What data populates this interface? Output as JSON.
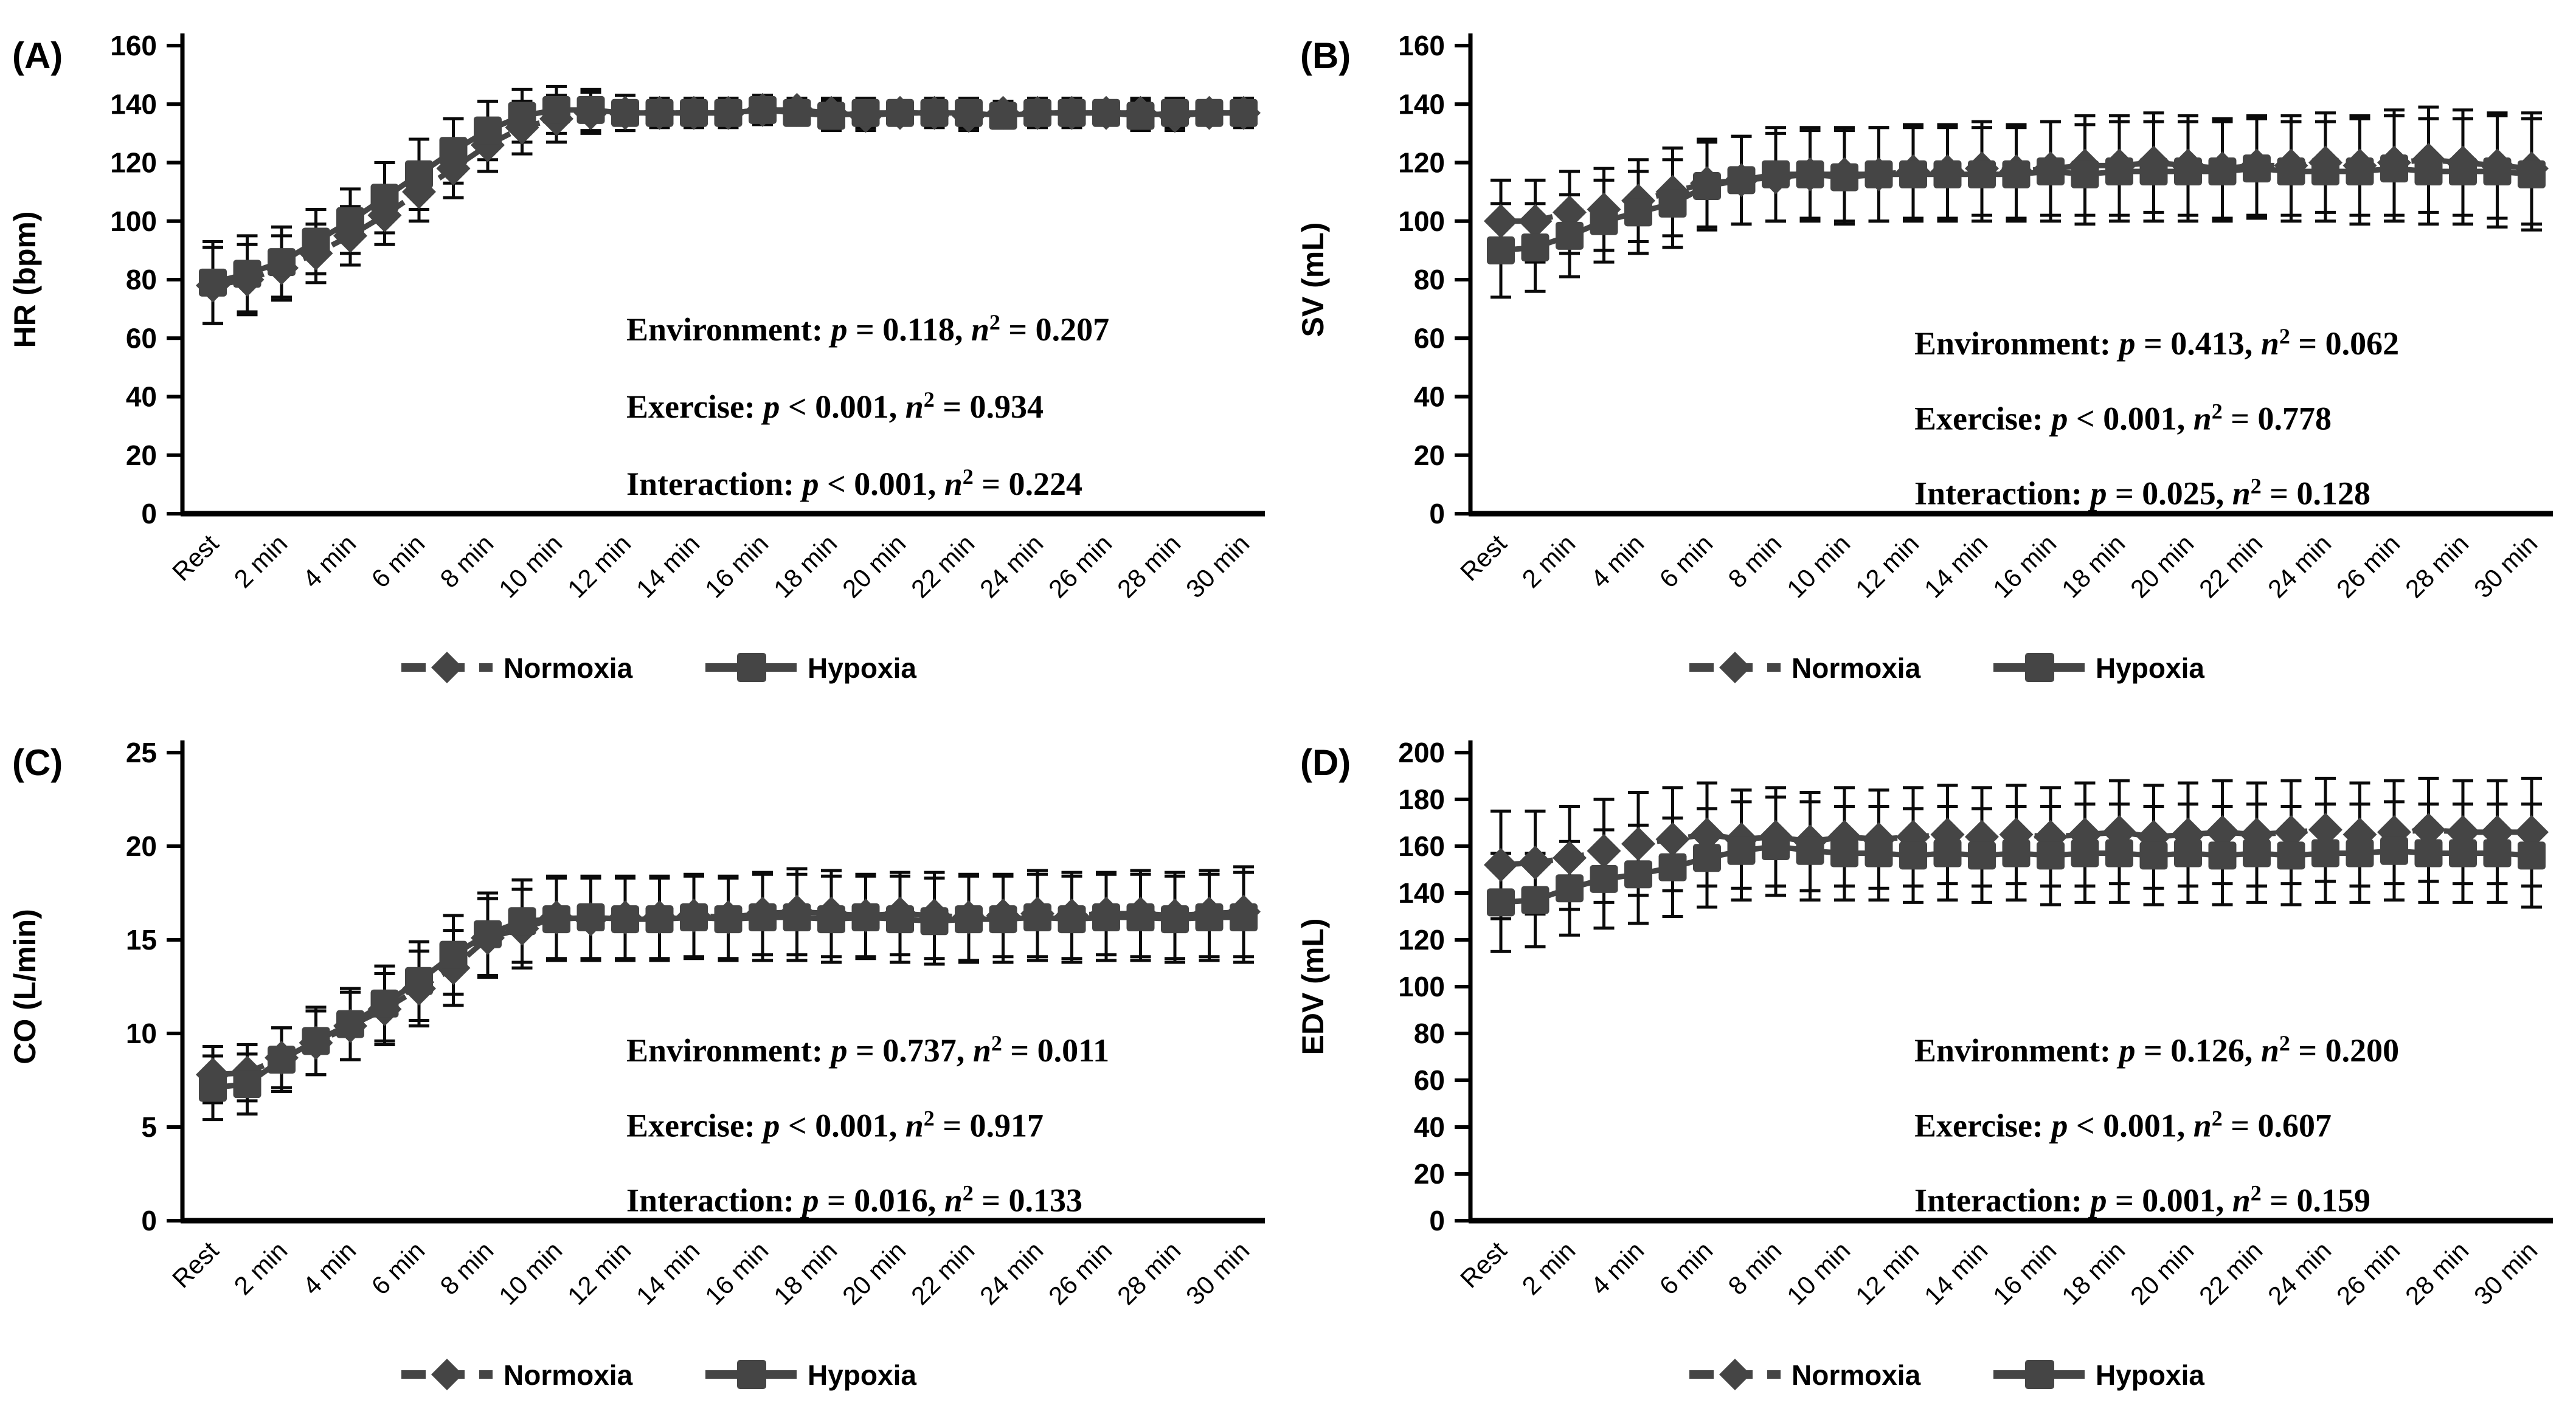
{
  "colors": {
    "background": "#ffffff",
    "series_gray": "#454545",
    "error_bar": "#0a0a0a",
    "axis": "#000000",
    "text": "#000000"
  },
  "legend": {
    "items": [
      {
        "label": "Normoxia",
        "marker": "diamond"
      },
      {
        "label": "Hypoxia",
        "marker": "square"
      }
    ]
  },
  "x_axis": {
    "tick_labels": [
      "Rest",
      "2 min",
      "4 min",
      "6 min",
      "8 min",
      "10 min",
      "12 min",
      "14 min",
      "16 min",
      "18 min",
      "20 min",
      "22 min",
      "24 min",
      "26 min",
      "28 min",
      "30 min"
    ]
  },
  "chart_data": [
    {
      "id": "A",
      "type": "line",
      "panel_label": "(A)",
      "ylabel": "HR (bpm)",
      "ylim": [
        0,
        160
      ],
      "ytick_step": 20,
      "ytick_labels": [
        "0",
        "20",
        "40",
        "60",
        "80",
        "100",
        "120",
        "140",
        "160"
      ],
      "x_minutes": [
        0,
        1,
        2,
        3,
        4,
        5,
        6,
        7,
        8,
        9,
        10,
        11,
        12,
        13,
        14,
        15,
        16,
        17,
        18,
        19,
        20,
        21,
        22,
        23,
        24,
        25,
        26,
        27,
        28,
        29,
        30
      ],
      "series": [
        {
          "name": "Normoxia",
          "marker": "diamond",
          "values": [
            78,
            80,
            84,
            89,
            95,
            102,
            110,
            118,
            126,
            132,
            135,
            137,
            137,
            137,
            137,
            137,
            138,
            138,
            137,
            136,
            137,
            137,
            136,
            137,
            137,
            137,
            137,
            137,
            136,
            137,
            137
          ],
          "err": [
            13,
            12,
            11,
            10,
            10,
            10,
            10,
            10,
            9,
            9,
            8,
            7,
            6,
            5,
            5,
            5,
            5,
            4,
            5,
            5,
            4,
            5,
            5,
            4,
            5,
            5,
            4,
            5,
            5,
            4,
            5
          ]
        },
        {
          "name": "Hypoxia",
          "marker": "square",
          "values": [
            79,
            82,
            86,
            93,
            100,
            108,
            116,
            124,
            131,
            136,
            138,
            138,
            137,
            137,
            137,
            137,
            138,
            137,
            136,
            137,
            137,
            137,
            137,
            136,
            137,
            137,
            137,
            136,
            137,
            137,
            137
          ],
          "err": [
            14,
            13,
            12,
            11,
            11,
            12,
            12,
            11,
            10,
            9,
            8,
            7,
            6,
            5,
            5,
            5,
            5,
            4,
            5,
            5,
            4,
            5,
            5,
            4,
            5,
            5,
            4,
            5,
            5,
            4,
            5
          ]
        }
      ],
      "stats": [
        [
          "Environment: ",
          "p",
          " = 0.118, ",
          "n",
          "2",
          " = 0.207"
        ],
        [
          "Exercise: ",
          "p",
          " < 0.001, ",
          "n",
          "2",
          " = 0.934"
        ],
        [
          "Interaction: ",
          "p",
          " < 0.001, ",
          "n",
          "2",
          " = 0.224"
        ]
      ]
    },
    {
      "id": "B",
      "type": "line",
      "panel_label": "(B)",
      "ylabel": "SV (mL)",
      "ylim": [
        0,
        160
      ],
      "ytick_step": 20,
      "ytick_labels": [
        "0",
        "20",
        "40",
        "60",
        "80",
        "100",
        "120",
        "140",
        "160"
      ],
      "x_minutes": [
        0,
        1,
        2,
        3,
        4,
        5,
        6,
        7,
        8,
        9,
        10,
        11,
        12,
        13,
        14,
        15,
        16,
        17,
        18,
        19,
        20,
        21,
        22,
        23,
        24,
        25,
        26,
        27,
        28,
        29,
        30
      ],
      "series": [
        {
          "name": "Normoxia",
          "marker": "diamond",
          "values": [
            100,
            100,
            103,
            104,
            107,
            110,
            113,
            114,
            115,
            116,
            116,
            116,
            117,
            117,
            118,
            117,
            118,
            119,
            119,
            120,
            119,
            118,
            119,
            119,
            120,
            119,
            120,
            121,
            120,
            119,
            118
          ],
          "err": [
            14,
            14,
            14,
            14,
            14,
            15,
            15,
            15,
            15,
            15,
            16,
            16,
            16,
            16,
            16,
            16,
            16,
            17,
            17,
            17,
            17,
            17,
            17,
            17,
            17,
            17,
            18,
            18,
            18,
            18,
            19
          ]
        },
        {
          "name": "Hypoxia",
          "marker": "square",
          "values": [
            90,
            91,
            95,
            100,
            103,
            106,
            112,
            114,
            116,
            116,
            115,
            116,
            116,
            116,
            116,
            116,
            117,
            116,
            117,
            117,
            117,
            117,
            118,
            117,
            117,
            117,
            118,
            117,
            117,
            117,
            116
          ],
          "err": [
            16,
            15,
            14,
            14,
            14,
            15,
            15,
            15,
            16,
            16,
            16,
            16,
            16,
            16,
            16,
            16,
            17,
            17,
            17,
            17,
            17,
            17,
            17,
            17,
            17,
            18,
            18,
            18,
            18,
            19,
            19
          ]
        }
      ],
      "stats": [
        [
          "Environment: ",
          "p",
          " = 0.413, ",
          "n",
          "2",
          " = 0.062"
        ],
        [
          "Exercise: ",
          "p",
          " < 0.001, ",
          "n",
          "2",
          " = 0.778"
        ],
        [
          "Interaction: ",
          "p",
          " = 0.025, ",
          "n",
          "2",
          " = 0.128"
        ]
      ]
    },
    {
      "id": "C",
      "type": "line",
      "panel_label": "(C)",
      "ylabel": "CO (L/min)",
      "ylim": [
        0,
        25
      ],
      "ytick_step": 5,
      "ytick_labels": [
        "0",
        "5",
        "10",
        "15",
        "20",
        "25"
      ],
      "x_minutes": [
        0,
        1,
        2,
        3,
        4,
        5,
        6,
        7,
        8,
        9,
        10,
        11,
        12,
        13,
        14,
        15,
        16,
        17,
        18,
        19,
        20,
        21,
        22,
        23,
        24,
        25,
        26,
        27,
        28,
        29,
        30
      ],
      "series": [
        {
          "name": "Normoxia",
          "marker": "diamond",
          "values": [
            7.8,
            7.9,
            8.7,
            9.5,
            10.4,
            11.3,
            12.4,
            13.5,
            15.1,
            15.6,
            16.2,
            16.1,
            16.2,
            16.2,
            16.3,
            16.2,
            16.4,
            16.5,
            16.4,
            16.3,
            16.4,
            16.3,
            16.2,
            16.3,
            16.4,
            16.3,
            16.4,
            16.4,
            16.3,
            16.4,
            16.5
          ],
          "err": [
            1.5,
            1.5,
            1.6,
            1.7,
            1.8,
            1.9,
            2.0,
            2.0,
            2.1,
            2.1,
            2.2,
            2.2,
            2.2,
            2.2,
            2.2,
            2.2,
            2.2,
            2.3,
            2.3,
            2.2,
            2.2,
            2.3,
            2.3,
            2.2,
            2.3,
            2.3,
            2.2,
            2.3,
            2.3,
            2.3,
            2.4
          ]
        },
        {
          "name": "Hypoxia",
          "marker": "square",
          "values": [
            7.1,
            7.3,
            8.6,
            9.6,
            10.5,
            11.6,
            12.8,
            14.2,
            15.3,
            16.0,
            16.1,
            16.2,
            16.1,
            16.1,
            16.2,
            16.1,
            16.2,
            16.2,
            16.1,
            16.2,
            16.1,
            16.0,
            16.1,
            16.1,
            16.2,
            16.1,
            16.2,
            16.2,
            16.1,
            16.2,
            16.2
          ],
          "err": [
            1.7,
            1.6,
            1.7,
            1.8,
            1.9,
            2.0,
            2.1,
            2.1,
            2.2,
            2.2,
            2.2,
            2.2,
            2.2,
            2.2,
            2.2,
            2.2,
            2.3,
            2.3,
            2.3,
            2.2,
            2.3,
            2.3,
            2.3,
            2.3,
            2.3,
            2.3,
            2.3,
            2.3,
            2.3,
            2.3,
            2.4
          ]
        }
      ],
      "stats": [
        [
          "Environment: ",
          "p",
          " = 0.737, ",
          "n",
          "2",
          " = 0.011"
        ],
        [
          "Exercise: ",
          "p",
          " < 0.001, ",
          "n",
          "2",
          " = 0.917"
        ],
        [
          "Interaction: ",
          "p",
          " = 0.016, ",
          "n",
          "2",
          " = 0.133"
        ]
      ]
    },
    {
      "id": "D",
      "type": "line",
      "panel_label": "(D)",
      "ylabel": "EDV (mL)",
      "ylim": [
        0,
        200
      ],
      "ytick_step": 20,
      "ytick_labels": [
        "0",
        "20",
        "40",
        "60",
        "80",
        "100",
        "120",
        "140",
        "160",
        "180",
        "200"
      ],
      "x_minutes": [
        0,
        1,
        2,
        3,
        4,
        5,
        6,
        7,
        8,
        9,
        10,
        11,
        12,
        13,
        14,
        15,
        16,
        17,
        18,
        19,
        20,
        21,
        22,
        23,
        24,
        25,
        26,
        27,
        28,
        29,
        30
      ],
      "series": [
        {
          "name": "Normoxia",
          "marker": "diamond",
          "values": [
            152,
            153,
            155,
            158,
            161,
            163,
            165,
            163,
            164,
            162,
            164,
            163,
            164,
            165,
            164,
            165,
            164,
            165,
            166,
            164,
            165,
            166,
            165,
            166,
            167,
            165,
            166,
            167,
            166,
            166,
            166
          ],
          "err": [
            23,
            22,
            22,
            22,
            22,
            22,
            22,
            21,
            21,
            21,
            21,
            21,
            21,
            21,
            21,
            21,
            21,
            22,
            22,
            22,
            22,
            22,
            22,
            22,
            22,
            22,
            22,
            22,
            22,
            22,
            23
          ]
        },
        {
          "name": "Hypoxia",
          "marker": "square",
          "values": [
            136,
            137,
            142,
            146,
            148,
            151,
            155,
            158,
            160,
            158,
            157,
            157,
            156,
            157,
            156,
            157,
            156,
            157,
            157,
            156,
            157,
            156,
            157,
            156,
            157,
            157,
            158,
            157,
            157,
            157,
            156
          ],
          "err": [
            21,
            20,
            20,
            21,
            21,
            21,
            21,
            21,
            21,
            21,
            20,
            20,
            20,
            20,
            20,
            20,
            21,
            21,
            21,
            21,
            21,
            21,
            21,
            21,
            21,
            21,
            21,
            21,
            21,
            21,
            22
          ]
        }
      ],
      "stats": [
        [
          "Environment: ",
          "p",
          " = 0.126, ",
          "n",
          "2",
          " = 0.200"
        ],
        [
          "Exercise: ",
          "p",
          " < 0.001, ",
          "n",
          "2",
          " = 0.607"
        ],
        [
          "Interaction: ",
          "p",
          " = 0.001, ",
          "n",
          "2",
          " = 0.159"
        ]
      ]
    }
  ]
}
